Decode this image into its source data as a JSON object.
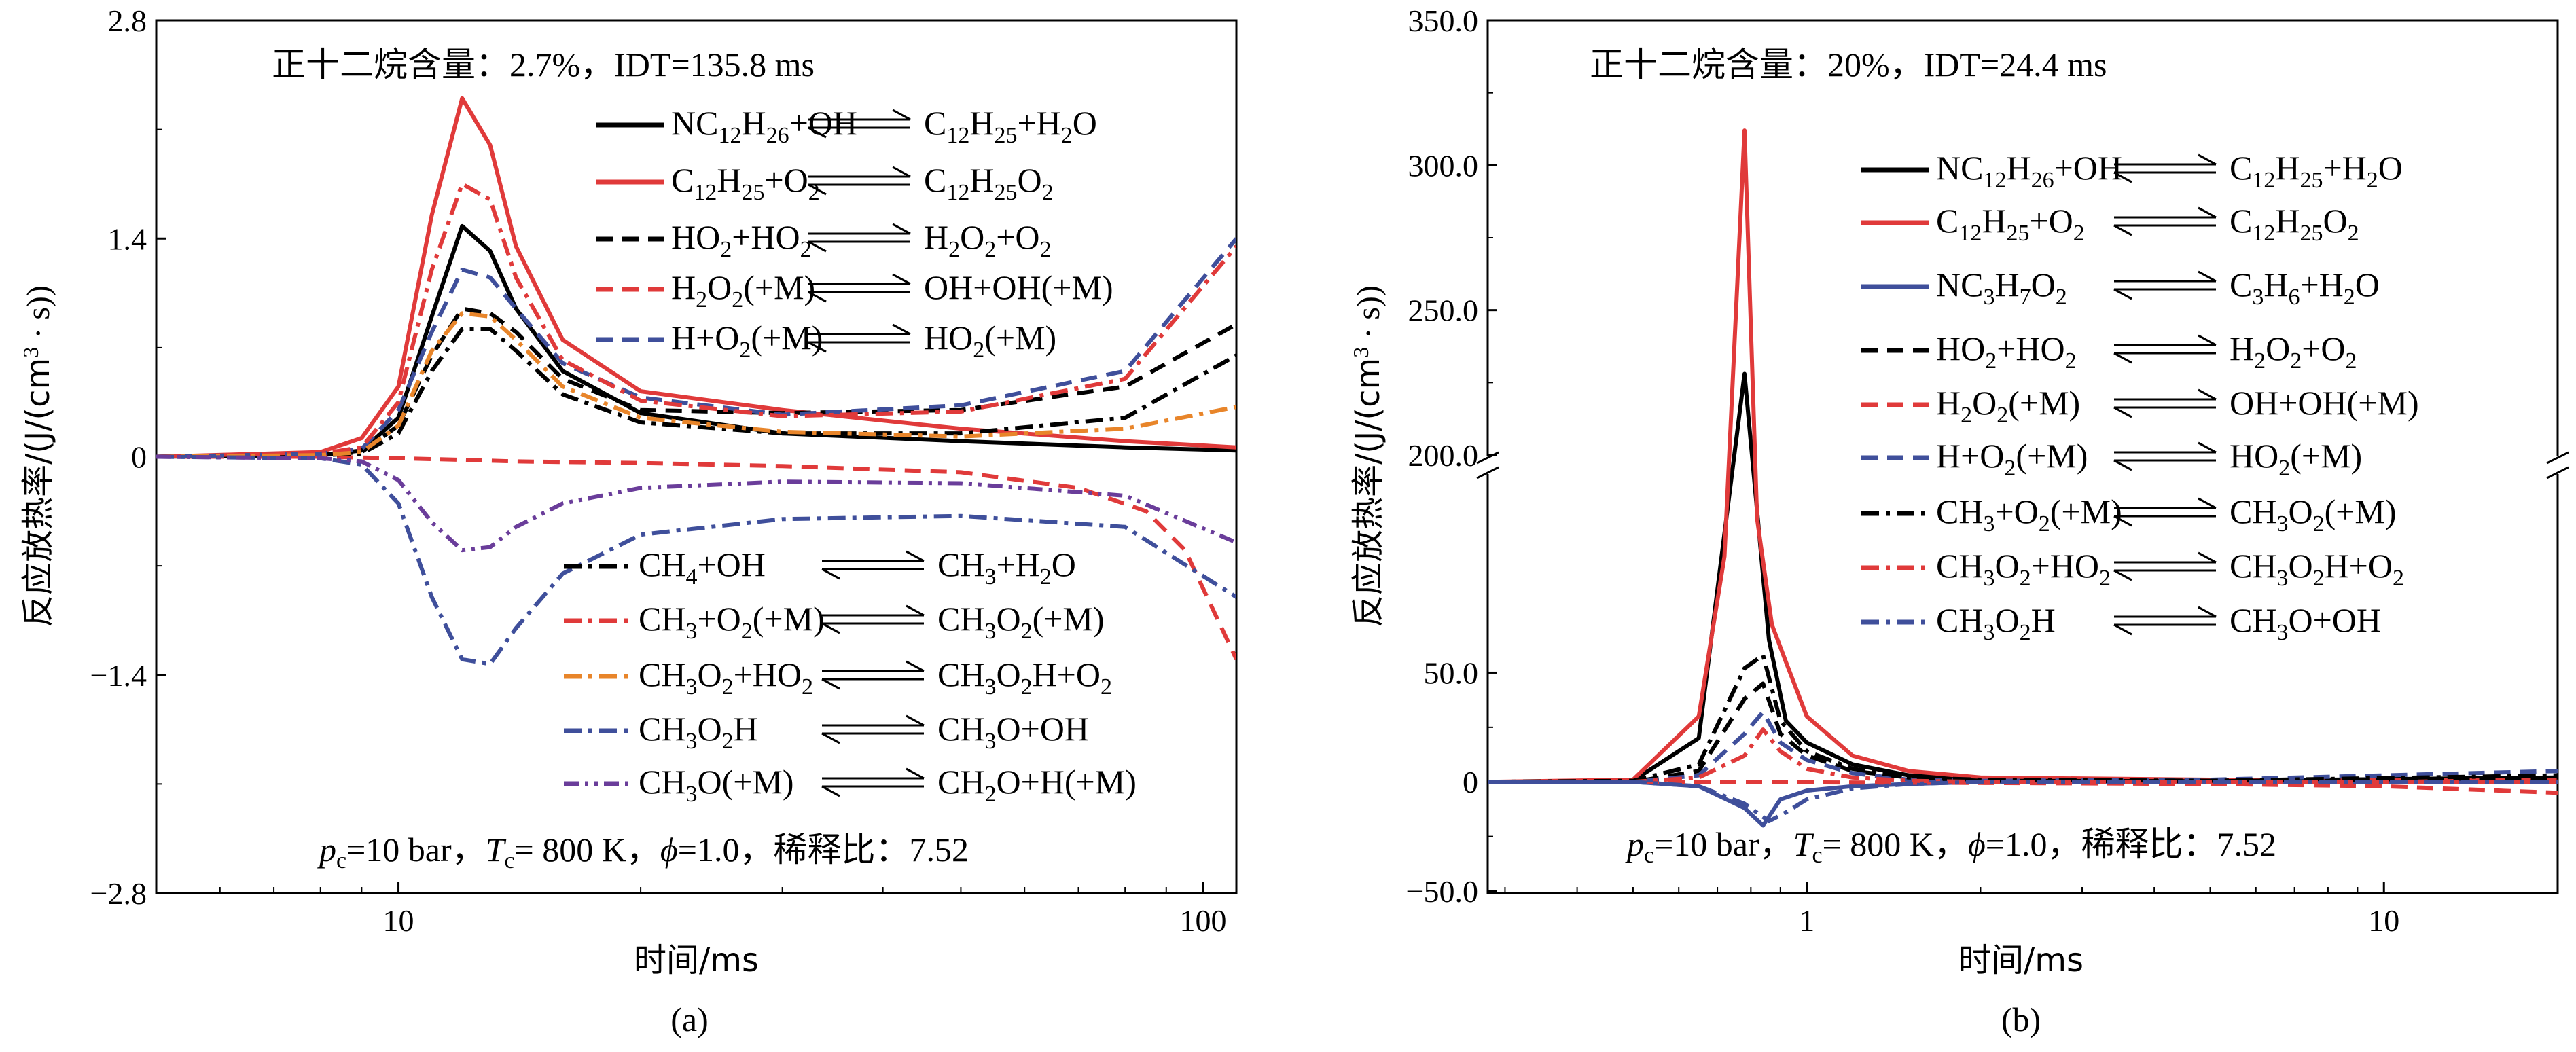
{
  "chart_data": [
    {
      "panel": "(a)",
      "type": "line",
      "title": "正十二烷含量：2.7%，IDT=135.8 ms",
      "xlabel": "时间/ms",
      "ylabel": "反应放热率/(J/(cm³ · s))",
      "xscale": "log",
      "xlim": [
        5,
        110
      ],
      "ylim": [
        -2.8,
        2.8
      ],
      "x_ticks": [
        {
          "value": 10,
          "label": "10"
        },
        {
          "value": 100,
          "label": "100"
        }
      ],
      "y_ticks": [
        {
          "value": 2.8,
          "label": "2.8"
        },
        {
          "value": 1.4,
          "label": "1.4"
        },
        {
          "value": 0,
          "label": "0"
        },
        {
          "value": -1.4,
          "label": "−1.4"
        },
        {
          "value": -2.8,
          "label": "−2.8"
        }
      ],
      "conditions": "pc=10 bar，Tc= 800 K，ϕ=1.0，稀释比：7.52",
      "legend_left": "NC12H26+OH / C12H25+H2O",
      "series": [
        {
          "name": "NC12H26+OH ⇌ C12H25+H2O",
          "color": "#000000",
          "dash": "solid",
          "x": [
            5,
            8,
            9,
            10,
            11,
            12,
            13,
            14,
            16,
            20,
            30,
            50,
            80,
            110
          ],
          "y": [
            0,
            0.01,
            0.04,
            0.25,
            0.9,
            1.48,
            1.32,
            0.95,
            0.55,
            0.28,
            0.15,
            0.1,
            0.06,
            0.04
          ]
        },
        {
          "name": "C12H25+O2 ⇌ C12H25O2",
          "color": "#e03a3a",
          "dash": "solid",
          "x": [
            5,
            8,
            9,
            10,
            11,
            12,
            13,
            14,
            16,
            20,
            30,
            50,
            80,
            110
          ],
          "y": [
            0,
            0.03,
            0.12,
            0.45,
            1.55,
            2.3,
            2.0,
            1.35,
            0.75,
            0.42,
            0.3,
            0.18,
            0.1,
            0.06
          ]
        },
        {
          "name": "HO2+HO2 ⇌ H2O2+O2",
          "color": "#000000",
          "dash": "dash",
          "x": [
            5,
            8,
            9,
            10,
            11,
            12,
            13,
            14,
            16,
            20,
            30,
            50,
            80,
            110
          ],
          "y": [
            0,
            0.01,
            0.03,
            0.2,
            0.65,
            0.95,
            0.92,
            0.8,
            0.5,
            0.3,
            0.28,
            0.3,
            0.45,
            0.85
          ]
        },
        {
          "name": "H2O2(+M) ⇌ OH+OH(+M)",
          "color": "#e03a3a",
          "dash": "dash",
          "x": [
            5,
            8,
            10,
            12,
            14,
            20,
            30,
            50,
            70,
            85,
            95,
            110
          ],
          "y": [
            0,
            0,
            -0.01,
            -0.02,
            -0.03,
            -0.04,
            -0.06,
            -0.1,
            -0.2,
            -0.35,
            -0.6,
            -1.3
          ]
        },
        {
          "name": "H+O2(+M) ⇌ HO2(+M)",
          "color": "#3f4f9b",
          "dash": "dash",
          "x": [
            5,
            8,
            9,
            10,
            11,
            12,
            13,
            14,
            16,
            20,
            30,
            50,
            80,
            110
          ],
          "y": [
            0,
            0.02,
            0.05,
            0.3,
            0.8,
            1.2,
            1.15,
            0.95,
            0.6,
            0.38,
            0.27,
            0.33,
            0.55,
            1.4
          ]
        },
        {
          "name": "CH4+OH ⇌ CH3+H2O",
          "color": "#000000",
          "dash": "dashdot",
          "x": [
            5,
            8,
            9,
            10,
            11,
            12,
            13,
            14,
            16,
            20,
            30,
            50,
            80,
            110
          ],
          "y": [
            0,
            0.01,
            0.02,
            0.15,
            0.55,
            0.82,
            0.82,
            0.68,
            0.4,
            0.22,
            0.15,
            0.15,
            0.25,
            0.65
          ]
        },
        {
          "name": "CH3+O2(+M) ⇌ CH3O2(+M)",
          "color": "#e03a3a",
          "dash": "dashdot",
          "x": [
            5,
            8,
            9,
            10,
            11,
            12,
            13,
            14,
            16,
            20,
            30,
            50,
            80,
            110
          ],
          "y": [
            0,
            0.02,
            0.06,
            0.35,
            1.2,
            1.75,
            1.65,
            1.15,
            0.62,
            0.36,
            0.26,
            0.29,
            0.5,
            1.35
          ]
        },
        {
          "name": "CH3O2+HO2 ⇌ CH3O2H+O2",
          "color": "#e8852a",
          "dash": "dashdot",
          "x": [
            5,
            8,
            9,
            10,
            11,
            12,
            13,
            14,
            16,
            20,
            30,
            50,
            80,
            110
          ],
          "y": [
            0,
            0.01,
            0.03,
            0.2,
            0.68,
            0.92,
            0.9,
            0.75,
            0.45,
            0.25,
            0.16,
            0.13,
            0.18,
            0.32
          ]
        },
        {
          "name": "CH3O2H ⇌ CH3O+OH",
          "color": "#3f4f9b",
          "dash": "dashdot",
          "x": [
            5,
            8,
            9,
            10,
            11,
            12,
            13,
            14,
            16,
            20,
            30,
            50,
            80,
            110
          ],
          "y": [
            0,
            -0.01,
            -0.05,
            -0.3,
            -0.9,
            -1.3,
            -1.33,
            -1.1,
            -0.75,
            -0.5,
            -0.4,
            -0.38,
            -0.45,
            -0.9
          ]
        },
        {
          "name": "CH3O(+M) ⇌ CH2O+H(+M)",
          "color": "#6a3d9a",
          "dash": "dashdotdot",
          "x": [
            5,
            8,
            9,
            10,
            11,
            12,
            13,
            14,
            16,
            20,
            30,
            50,
            80,
            110
          ],
          "y": [
            0,
            -0.01,
            -0.03,
            -0.15,
            -0.42,
            -0.6,
            -0.58,
            -0.45,
            -0.3,
            -0.2,
            -0.16,
            -0.17,
            -0.25,
            -0.55
          ]
        }
      ]
    },
    {
      "panel": "(b)",
      "type": "line",
      "title": "正十二烷含量：20%，IDT=24.4 ms",
      "xlabel": "时间/ms",
      "ylabel": "反应放热率/(J/(cm³ · s))",
      "xscale": "log",
      "xlim": [
        0.28,
        20
      ],
      "ylim": [
        -50,
        350
      ],
      "y_break": [
        80,
        200
      ],
      "x_ticks": [
        {
          "value": 1,
          "label": "1"
        },
        {
          "value": 10,
          "label": "10"
        }
      ],
      "y_ticks": [
        {
          "value": 350,
          "label": "350.0"
        },
        {
          "value": 300,
          "label": "300.0"
        },
        {
          "value": 250,
          "label": "250.0"
        },
        {
          "value": 200,
          "label": "200.0"
        },
        {
          "value": 50,
          "label": "50.0"
        },
        {
          "value": 0,
          "label": "0"
        },
        {
          "value": -50,
          "label": "−50.0"
        }
      ],
      "conditions": "pc=10 bar，Tc= 800 K，ϕ=1.0，稀释比：7.52",
      "series": [
        {
          "name": "NC12H26+OH ⇌ C12H25+H2O",
          "color": "#000000",
          "dash": "solid",
          "x": [
            0.28,
            0.5,
            0.65,
            0.78,
            0.86,
            0.92,
            1.0,
            1.2,
            1.5,
            2,
            5,
            20
          ],
          "y": [
            0,
            0.5,
            20,
            228,
            65,
            28,
            18,
            8,
            3,
            1,
            0.5,
            2
          ]
        },
        {
          "name": "C12H25+O2 ⇌ C12H25O2",
          "color": "#e03a3a",
          "dash": "solid",
          "x": [
            0.28,
            0.5,
            0.65,
            0.72,
            0.78,
            0.82,
            0.87,
            0.92,
            1.0,
            1.2,
            1.5,
            2,
            5,
            20
          ],
          "y": [
            0,
            1,
            30,
            120,
            312,
            150,
            72,
            55,
            30,
            12,
            5,
            2,
            1,
            1
          ]
        },
        {
          "name": "NC3H7O2 ⇌ C3H6+H2O",
          "color": "#3f4f9b",
          "dash": "solid",
          "x": [
            0.28,
            0.5,
            0.65,
            0.78,
            0.84,
            0.9,
            1.0,
            1.2,
            1.5,
            2,
            5,
            20
          ],
          "y": [
            0,
            0,
            -2,
            -12,
            -20,
            -8,
            -4,
            -2,
            -1,
            0,
            0,
            0
          ]
        },
        {
          "name": "HO2+HO2 ⇌ H2O2+O2",
          "color": "#000000",
          "dash": "dash",
          "x": [
            0.28,
            0.5,
            0.65,
            0.78,
            0.84,
            0.9,
            1.0,
            1.2,
            1.5,
            2,
            5,
            20
          ],
          "y": [
            0,
            0,
            5,
            38,
            45,
            22,
            12,
            5,
            2,
            0.5,
            0.3,
            2
          ]
        },
        {
          "name": "H2O2(+M) ⇌ OH+OH(+M)",
          "color": "#e03a3a",
          "dash": "dash",
          "x": [
            0.28,
            1,
            2,
            5,
            10,
            20
          ],
          "y": [
            0,
            -0.2,
            -0.5,
            -1,
            -2,
            -5
          ]
        },
        {
          "name": "H+O2(+M) ⇌ HO2(+M)",
          "color": "#3f4f9b",
          "dash": "dash",
          "x": [
            0.28,
            0.5,
            0.65,
            0.78,
            0.84,
            0.9,
            1.0,
            1.2,
            1.5,
            2,
            5,
            20
          ],
          "y": [
            0,
            0,
            3,
            22,
            32,
            18,
            10,
            4,
            1,
            0.5,
            1,
            5
          ]
        },
        {
          "name": "CH3+O2(+M) ⇌ CH3O2(+M)",
          "color": "#000000",
          "dash": "dashdot",
          "x": [
            0.28,
            0.5,
            0.65,
            0.78,
            0.84,
            0.9,
            1.0,
            1.2,
            1.5,
            2,
            5,
            20
          ],
          "y": [
            0,
            0.5,
            8,
            52,
            58,
            28,
            14,
            6,
            2,
            1,
            0.5,
            3
          ]
        },
        {
          "name": "CH3O2+HO2 ⇌ CH3O2H+O2",
          "color": "#e03a3a",
          "dash": "dashdot",
          "x": [
            0.28,
            0.5,
            0.65,
            0.78,
            0.84,
            0.9,
            1.0,
            1.2,
            1.5,
            2,
            5,
            20
          ],
          "y": [
            0,
            0,
            2,
            12,
            24,
            14,
            6,
            2,
            0.5,
            0,
            0,
            0
          ]
        },
        {
          "name": "CH3O2H ⇌ CH3O+OH",
          "color": "#3f4f9b",
          "dash": "dashdot",
          "x": [
            0.28,
            0.5,
            0.65,
            0.78,
            0.86,
            0.92,
            1.0,
            1.2,
            1.5,
            2,
            5,
            20
          ],
          "y": [
            0,
            0,
            -2,
            -10,
            -18,
            -14,
            -8,
            -3,
            -1,
            0,
            0,
            0
          ]
        }
      ]
    }
  ],
  "panel_a": {
    "title_label": "正十二烷含量：",
    "title_value": "2.7%，IDT=135.8 ms",
    "conditions": {
      "p": "p",
      "p_sub": "c",
      "p_val": "=10 bar，",
      "t": "T",
      "t_sub": "c",
      "t_val": "= 800 K，",
      "phi": "ϕ",
      "phi_val": "=1.0，稀释比：7.52"
    },
    "xlabel": "时间/ms",
    "ylabel": "反应放热率/(J/(cm",
    "ylabel_sup": "3",
    "ylabel_end": " · s))",
    "caption": "(a)",
    "legend": [
      {
        "l1": "NC",
        "s1": "12",
        "l2": "H",
        "s2": "26",
        "l3": "+OH",
        "r1": "C",
        "rs1": "12",
        "r2": "H",
        "rs2": "25",
        "r3": "+H",
        "rs3": "2",
        "r4": "O"
      },
      {
        "l1": "C",
        "s1": "12",
        "l2": "H",
        "s2": "25",
        "l3": "+O",
        "s3": "2",
        "r1": "C",
        "rs1": "12",
        "r2": "H",
        "rs2": "25",
        "r3": "O",
        "rs3": "2"
      },
      {
        "l1": "HO",
        "s1": "2",
        "l2": "+HO",
        "s2": "2",
        "r1": "H",
        "rs1": "2",
        "r2": "O",
        "rs2": "2",
        "r3": "+O",
        "rs3": "2"
      },
      {
        "l1": "H",
        "s1": "2",
        "l2": "O",
        "s2": "2",
        "l3": "(+M)",
        "r1": "OH+OH(+M)"
      },
      {
        "l1": "H+O",
        "s1": "2",
        "l2": "(+M)",
        "r1": "HO",
        "rs1": "2",
        "r2": "(+M)"
      },
      {
        "l1": "CH",
        "s1": "4",
        "l2": "+OH",
        "r1": "CH",
        "rs1": "3",
        "r2": "+H",
        "rs2": "2",
        "r3": "O"
      },
      {
        "l1": "CH",
        "s1": "3",
        "l2": "+O",
        "s2": "2",
        "l3": "(+M)",
        "r1": "CH",
        "rs1": "3",
        "r2": "O",
        "rs2": "2",
        "r3": "(+M)"
      },
      {
        "l1": "CH",
        "s1": "3",
        "l2": "O",
        "s2": "2",
        "l3": "+HO",
        "s3": "2",
        "r1": "CH",
        "rs1": "3",
        "r2": "O",
        "rs2": "2",
        "r3": "H+O",
        "rs3": "2"
      },
      {
        "l1": "CH",
        "s1": "3",
        "l2": "O",
        "s2": "2",
        "l3": "H",
        "r1": "CH",
        "rs1": "3",
        "r2": "O+OH"
      },
      {
        "l1": "CH",
        "s1": "3",
        "l2": "O(+M)",
        "r1": "CH",
        "rs1": "2",
        "r2": "O+H(+M)"
      }
    ]
  },
  "panel_b": {
    "title_label": "正十二烷含量：",
    "title_value": "20%，IDT=24.4 ms",
    "caption": "(b)",
    "legend": [
      {
        "l1": "NC",
        "s1": "12",
        "l2": "H",
        "s2": "26",
        "l3": "+OH",
        "r1": "C",
        "rs1": "12",
        "r2": "H",
        "rs2": "25",
        "r3": "+H",
        "rs3": "2",
        "r4": "O"
      },
      {
        "l1": "C",
        "s1": "12",
        "l2": "H",
        "s2": "25",
        "l3": "+O",
        "s3": "2",
        "r1": "C",
        "rs1": "12",
        "r2": "H",
        "rs2": "25",
        "r3": "O",
        "rs3": "2"
      },
      {
        "l1": "NC",
        "s1": "3",
        "l2": "H",
        "s2": "7",
        "l3": "O",
        "s3": "2",
        "r1": "C",
        "rs1": "3",
        "r2": "H",
        "rs2": "6",
        "r3": "+H",
        "rs3": "2",
        "r4": "O"
      },
      {
        "l1": "HO",
        "s1": "2",
        "l2": "+HO",
        "s2": "2",
        "r1": "H",
        "rs1": "2",
        "r2": "O",
        "rs2": "2",
        "r3": "+O",
        "rs3": "2"
      },
      {
        "l1": "H",
        "s1": "2",
        "l2": "O",
        "s2": "2",
        "l3": "(+M)",
        "r1": "OH+OH(+M)"
      },
      {
        "l1": "H+O",
        "s1": "2",
        "l2": "(+M)",
        "r1": "HO",
        "rs1": "2",
        "r2": "(+M)"
      },
      {
        "l1": "CH",
        "s1": "3",
        "l2": "+O",
        "s2": "2",
        "l3": "(+M)",
        "r1": "CH",
        "rs1": "3",
        "r2": "O",
        "rs2": "2",
        "r3": "(+M)"
      },
      {
        "l1": "CH",
        "s1": "3",
        "l2": "O",
        "s2": "2",
        "l3": "+HO",
        "s3": "2",
        "r1": "CH",
        "rs1": "3",
        "r2": "O",
        "rs2": "2",
        "r3": "H+O",
        "rs3": "2"
      },
      {
        "l1": "CH",
        "s1": "3",
        "l2": "O",
        "s2": "2",
        "l3": "H",
        "r1": "CH",
        "rs1": "3",
        "r2": "O+OH"
      }
    ]
  }
}
